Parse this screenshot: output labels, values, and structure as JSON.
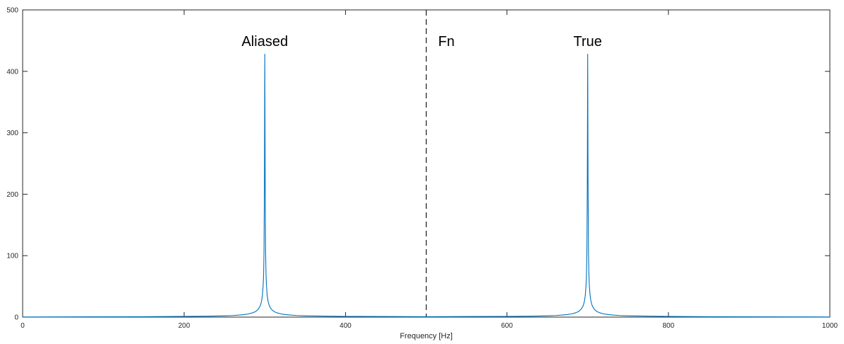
{
  "chart_data": {
    "type": "line",
    "title": "",
    "xlabel": "Frequency [Hz]",
    "ylabel": "",
    "xlim": [
      0,
      1000
    ],
    "ylim": [
      0,
      500
    ],
    "xticks": [
      0,
      200,
      400,
      600,
      800,
      1000
    ],
    "yticks": [
      0,
      100,
      200,
      300,
      400,
      500
    ],
    "x_tick_labels": [
      "0",
      "200",
      "400",
      "600",
      "800",
      "1000"
    ],
    "y_tick_labels": [
      "0",
      "100",
      "200",
      "300",
      "400",
      "500"
    ],
    "grid": false,
    "line_color": "#0072BD",
    "series": [
      {
        "x": [
          0,
          50,
          100,
          150,
          200,
          230,
          250,
          260,
          270,
          275,
          280,
          285,
          288,
          290,
          292,
          294,
          295,
          296,
          297,
          298,
          298.5,
          299,
          299.5,
          300,
          300.5,
          301,
          301.5,
          302,
          303,
          304,
          305,
          306,
          308,
          310,
          312,
          315,
          320,
          325,
          330,
          340,
          350,
          370,
          400,
          450,
          500,
          550,
          600,
          630,
          650,
          660,
          670,
          675,
          680,
          685,
          688,
          690,
          692,
          694,
          695,
          696,
          697,
          698,
          698.5,
          699,
          699.5,
          700,
          700.5,
          701,
          701.5,
          702,
          703,
          704,
          705,
          706,
          708,
          710,
          712,
          715,
          720,
          725,
          730,
          740,
          750,
          770,
          800,
          850,
          900,
          950,
          1000
        ],
        "y": [
          0.3,
          0.4,
          0.5,
          0.7,
          1.1,
          1.5,
          2.1,
          2.6,
          3.5,
          4.2,
          5.2,
          7.0,
          8.7,
          10.5,
          13.1,
          17.5,
          21.0,
          26.2,
          35.0,
          52.5,
          70.0,
          105.0,
          210.0,
          428.0,
          210.0,
          105.0,
          70.0,
          52.5,
          35.0,
          26.2,
          21.0,
          17.5,
          13.1,
          10.5,
          8.7,
          7.0,
          5.2,
          4.2,
          3.5,
          2.6,
          2.1,
          1.6,
          1.1,
          0.9,
          0.7,
          0.9,
          1.1,
          1.5,
          2.1,
          2.6,
          3.5,
          4.2,
          5.2,
          7.0,
          8.7,
          10.5,
          13.1,
          17.5,
          21.0,
          26.2,
          35.0,
          52.5,
          70.0,
          105.0,
          210.0,
          428.0,
          210.0,
          105.0,
          70.0,
          52.5,
          35.0,
          26.2,
          21.0,
          17.5,
          13.1,
          10.5,
          8.7,
          7.0,
          5.2,
          4.2,
          3.5,
          2.6,
          2.1,
          1.6,
          1.1,
          0.7,
          0.5,
          0.4,
          0.3
        ]
      }
    ],
    "vline": {
      "x": 500,
      "style": "dashed",
      "color": "#262626"
    },
    "annotations": [
      {
        "text": "Aliased",
        "x": 300,
        "y": 448
      },
      {
        "text": "Fn",
        "x": 525,
        "y": 448
      },
      {
        "text": "True",
        "x": 700,
        "y": 448
      }
    ]
  }
}
